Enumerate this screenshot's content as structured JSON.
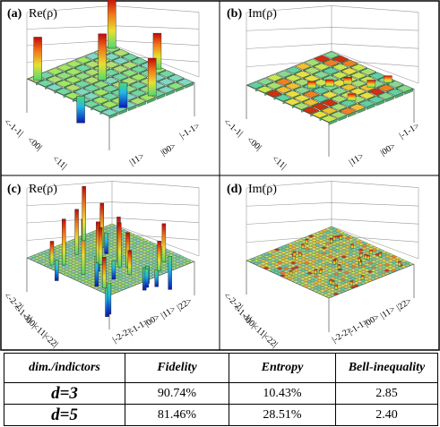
{
  "panels": [
    {
      "id": "a",
      "label": "(a)",
      "title": "Re(ρ)",
      "axis_labels": [
        "<-1-1|",
        "<00|",
        "<11|",
        "|11>",
        "|00>",
        "|-1-1>"
      ]
    },
    {
      "id": "b",
      "label": "(b)",
      "title": "Im(ρ)",
      "axis_labels": [
        "<-1-1|",
        "<00|",
        "<11|",
        "|11>",
        "|00>",
        "|-1-1>"
      ]
    },
    {
      "id": "c",
      "label": "(c)",
      "title": "Re(ρ)",
      "axis_labels": [
        "<-2-2|",
        "<-1-1|",
        "<00|",
        "<11|",
        "<22|",
        "|-2-2>",
        "|-1-1>",
        "|00>",
        "|11>",
        "|22>"
      ]
    },
    {
      "id": "d",
      "label": "(d)",
      "title": "Im(ρ)",
      "axis_labels": [
        "<-2-2|",
        "<-1-1|",
        "<00|",
        "<11|",
        "<22|",
        "|-2-2>",
        "|-1-1>",
        "|00>",
        "|11>",
        "|22>"
      ]
    }
  ],
  "table": {
    "headers": [
      "dim./indictors",
      "Fidelity",
      "Entropy",
      "Bell-inequality"
    ],
    "rows": [
      {
        "label": "d=3",
        "fidelity": "90.74%",
        "entropy": "10.43%",
        "bell": "2.85"
      },
      {
        "label": "d=5",
        "fidelity": "81.46%",
        "entropy": "28.51%",
        "bell": "2.40"
      }
    ]
  }
}
